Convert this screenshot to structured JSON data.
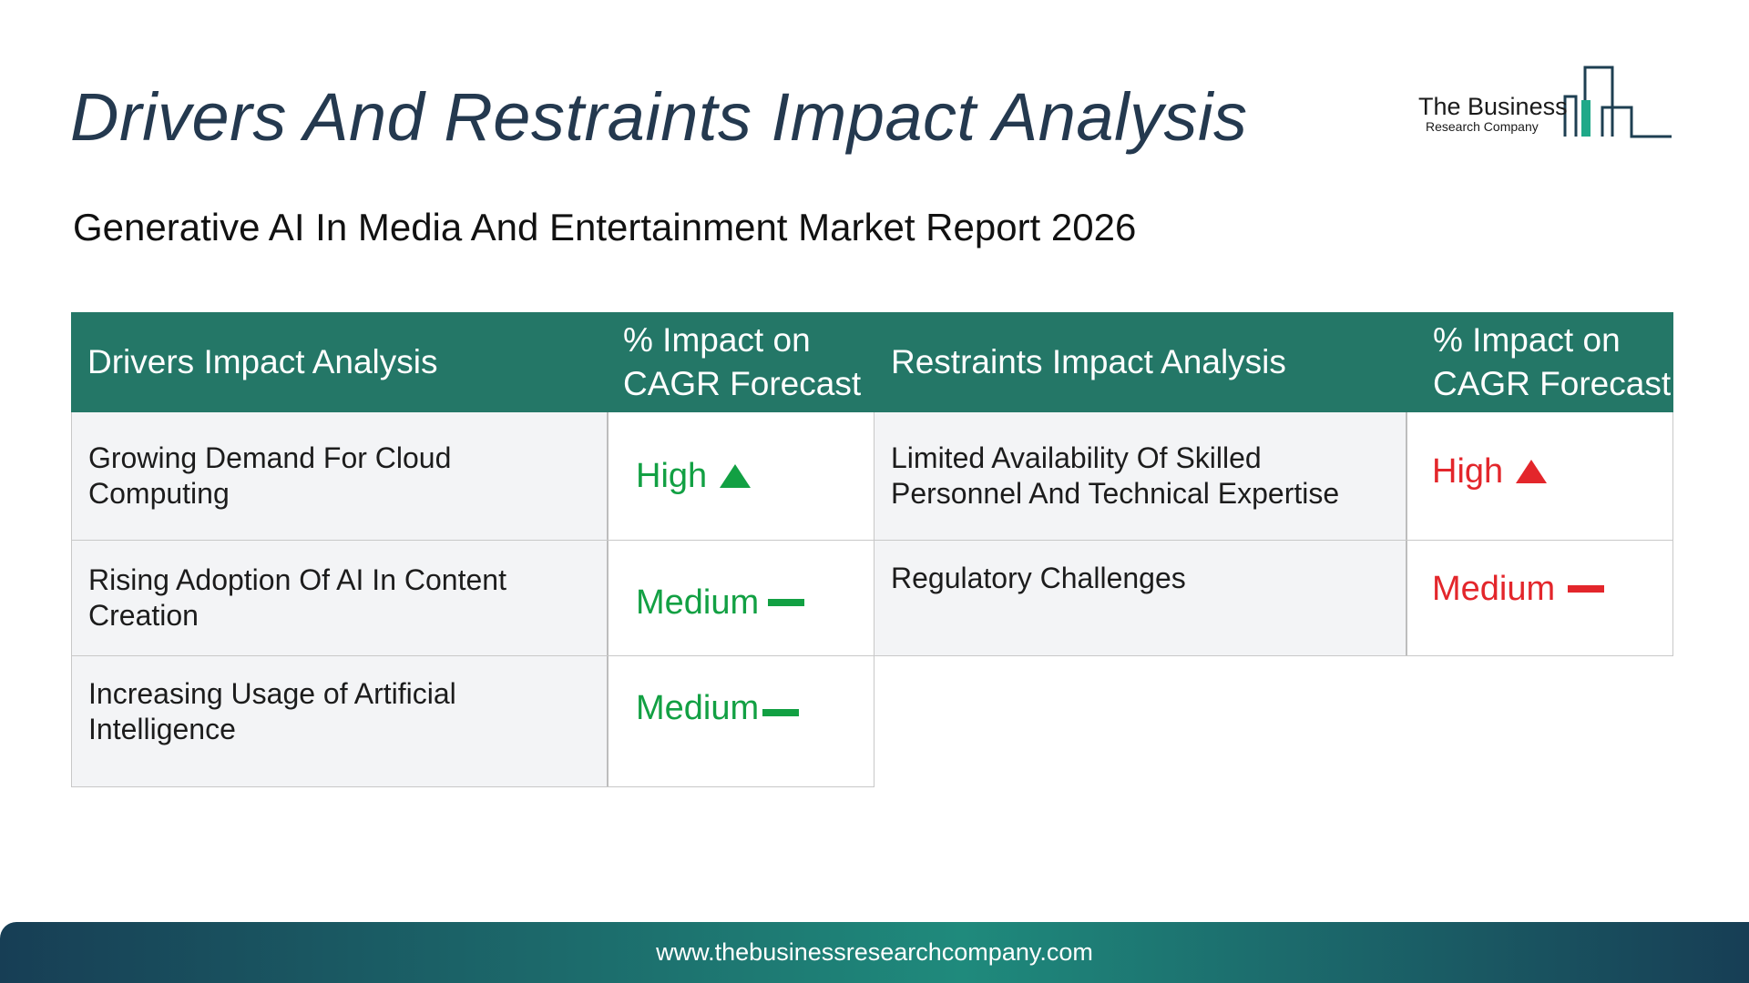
{
  "page": {
    "title": "Drivers And Restraints Impact Analysis",
    "subtitle": "Generative AI In Media And Entertainment Market Report 2026"
  },
  "logo": {
    "name": "The Business",
    "tagline": "Research Company"
  },
  "drivers_table": {
    "headers": [
      "Drivers Impact Analysis",
      "% Impact on CAGR Forecast"
    ],
    "rows": [
      {
        "driver": "Growing Demand For Cloud Computing",
        "impact": "High",
        "trend_icon": "arrow-up-icon"
      },
      {
        "driver": "Rising Adoption Of AI In Content Creation",
        "impact": "Medium",
        "trend_icon": "dash-icon"
      },
      {
        "driver": "Increasing Usage of Artificial Intelligence",
        "impact": "Medium",
        "trend_icon": "dash-icon"
      }
    ]
  },
  "restraints_table": {
    "headers": [
      "Restraints Impact Analysis",
      "% Impact on CAGR Forecast"
    ],
    "rows": [
      {
        "restraint": "Limited Availability Of Skilled Personnel And Technical Expertise",
        "impact": "High",
        "trend_icon": "arrow-up-icon"
      },
      {
        "restraint": "Regulatory Challenges",
        "impact": "Medium",
        "trend_icon": "dash-icon"
      }
    ]
  },
  "footer": {
    "url": "www.thebusinessresearchcompany.com"
  },
  "colors": {
    "header_bg": "#247767",
    "title": "#24394f",
    "driver_impact": "#12a043",
    "restraint_impact": "#e3262b",
    "cell_bg": "#f3f4f6"
  }
}
